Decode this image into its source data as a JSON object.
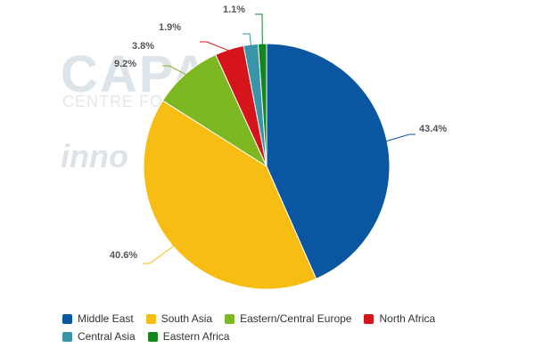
{
  "watermark": {
    "logo": "CAPA",
    "tagline": "CENTRE FOR",
    "brand": "inno"
  },
  "chart_data": {
    "type": "pie",
    "title": "",
    "start_angle_deg": 0,
    "direction": "clockwise",
    "slices": [
      {
        "label": "Middle East",
        "value": 43.4,
        "label_text": "43.4%",
        "color": "#0b56a0"
      },
      {
        "label": "South Asia",
        "value": 40.6,
        "label_text": "40.6%",
        "color": "#f7bd12"
      },
      {
        "label": "Eastern/Central Europe",
        "value": 9.2,
        "label_text": "9.2%",
        "color": "#7db823"
      },
      {
        "label": "North Africa",
        "value": 3.8,
        "label_text": "3.8%",
        "color": "#d5141b"
      },
      {
        "label": "Central Asia",
        "value": 1.9,
        "label_text": "1.9%",
        "color": "#3a94a8"
      },
      {
        "label": "Eastern Africa",
        "value": 1.1,
        "label_text": "1.1%",
        "color": "#12851d"
      }
    ],
    "legend": {
      "placement": "bottom-left",
      "rows": [
        [
          {
            "label": "Middle East",
            "color": "#0b56a0"
          },
          {
            "label": "South Asia",
            "color": "#f7bd12"
          },
          {
            "label": "Eastern/Central Europe",
            "color": "#7db823"
          },
          {
            "label": "North Africa",
            "color": "#d5141b"
          }
        ],
        [
          {
            "label": "Central Asia",
            "color": "#3a94a8"
          },
          {
            "label": "Eastern Africa",
            "color": "#12851d"
          }
        ]
      ]
    }
  }
}
